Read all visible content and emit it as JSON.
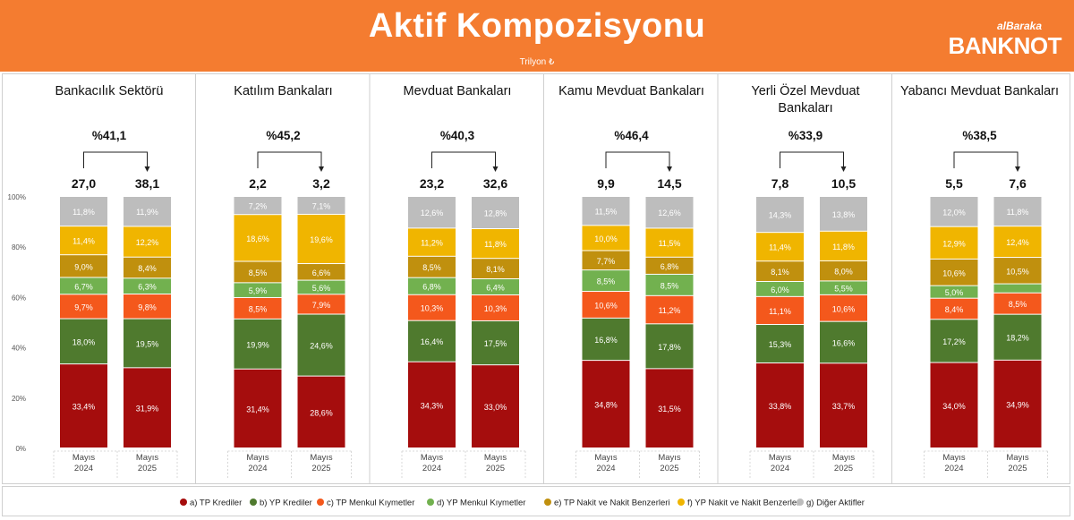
{
  "header": {
    "title": "Aktif Kompozisyonu",
    "unit": "Trilyon ₺",
    "logo_small": "alBaraka",
    "logo_main": "BANKNOT",
    "background": "#f47c30"
  },
  "chart_data": {
    "type": "bar",
    "stacked": true,
    "percent_stacked": true,
    "ylim": [
      0,
      100
    ],
    "y_ticks": [
      "0%",
      "20%",
      "40%",
      "60%",
      "80%",
      "100%"
    ],
    "grid": false,
    "legend_position": "bottom",
    "categories": [
      [
        "Mayıs",
        "2024"
      ],
      [
        "Mayıs",
        "2025"
      ]
    ],
    "series": [
      {
        "name": "a) TP Krediler",
        "color": "#a50d0d",
        "label_color": "#ffffff"
      },
      {
        "name": "b) YP Krediler",
        "color": "#4f7a2e",
        "label_color": "#ffffff"
      },
      {
        "name": "c) TP Menkul Kıymetler",
        "color": "#f4581c",
        "label_color": "#ffffff"
      },
      {
        "name": "d) YP Menkul Kıymetler",
        "color": "#72b14f",
        "label_color": "#ffffff"
      },
      {
        "name": "e) TP Nakit ve Nakit Benzerleri",
        "color": "#c0900e",
        "label_color": "#ffffff"
      },
      {
        "name": "f) YP Nakit ve Nakit Benzerleri",
        "color": "#f0b500",
        "label_color": "#ffffff"
      },
      {
        "name": "g) Diğer Aktifler",
        "color": "#bdbdbd",
        "label_color": "#ffffff"
      }
    ],
    "panels": [
      {
        "title": [
          "Bankacılık Sektörü"
        ],
        "growth": "%41,1",
        "totals": [
          "27,0",
          "38,1"
        ],
        "bars": [
          {
            "values": [
              33.4,
              18.0,
              9.7,
              6.7,
              9.0,
              11.4,
              11.8
            ],
            "labels": [
              "33,4%",
              "18,0%",
              "9,7%",
              "6,7%",
              "9,0%",
              "11,4%",
              "11,8%"
            ]
          },
          {
            "values": [
              31.9,
              19.5,
              9.8,
              6.3,
              8.4,
              12.2,
              11.9
            ],
            "labels": [
              "31,9%",
              "19,5%",
              "9,8%",
              "6,3%",
              "8,4%",
              "12,2%",
              "11,9%"
            ]
          }
        ]
      },
      {
        "title": [
          "Katılım Bankaları"
        ],
        "growth": "%45,2",
        "totals": [
          "2,2",
          "3,2"
        ],
        "bars": [
          {
            "values": [
              31.4,
              19.9,
              8.5,
              5.9,
              8.5,
              18.6,
              7.2
            ],
            "labels": [
              "31,4%",
              "19,9%",
              "8,5%",
              "5,9%",
              "8,5%",
              "18,6%",
              "7,2%"
            ]
          },
          {
            "values": [
              28.6,
              24.6,
              7.9,
              5.6,
              6.6,
              19.6,
              7.1
            ],
            "labels": [
              "28,6%",
              "24,6%",
              "7,9%",
              "5,6%",
              "6,6%",
              "19,6%",
              "7,1%"
            ]
          }
        ]
      },
      {
        "title": [
          "Mevduat Bankaları"
        ],
        "growth": "%40,3",
        "totals": [
          "23,2",
          "32,6"
        ],
        "bars": [
          {
            "values": [
              34.3,
              16.4,
              10.3,
              6.8,
              8.5,
              11.2,
              12.6
            ],
            "labels": [
              "34,3%",
              "16,4%",
              "10,3%",
              "6,8%",
              "8,5%",
              "11,2%",
              "12,6%"
            ]
          },
          {
            "values": [
              33.0,
              17.5,
              10.3,
              6.4,
              8.1,
              11.8,
              12.8
            ],
            "labels": [
              "33,0%",
              "17,5%",
              "10,3%",
              "6,4%",
              "8,1%",
              "11,8%",
              "12,8%"
            ]
          }
        ]
      },
      {
        "title": [
          "Kamu Mevduat Bankaları"
        ],
        "growth": "%46,4",
        "totals": [
          "9,9",
          "14,5"
        ],
        "bars": [
          {
            "values": [
              34.8,
              16.8,
              10.6,
              8.5,
              7.7,
              10.0,
              11.5
            ],
            "labels": [
              "34,8%",
              "16,8%",
              "10,6%",
              "8,5%",
              "7,7%",
              "10,0%",
              "11,5%"
            ]
          },
          {
            "values": [
              31.5,
              17.8,
              11.2,
              8.5,
              6.8,
              11.5,
              12.6
            ],
            "labels": [
              "31,5%",
              "17,8%",
              "11,2%",
              "8,5%",
              "6,8%",
              "11,5%",
              "12,6%"
            ]
          }
        ]
      },
      {
        "title": [
          "Yerli Özel Mevduat",
          "Bankaları"
        ],
        "growth": "%33,9",
        "totals": [
          "7,8",
          "10,5"
        ],
        "bars": [
          {
            "values": [
              33.8,
              15.3,
              11.1,
              6.0,
              8.1,
              11.4,
              14.3
            ],
            "labels": [
              "33,8%",
              "15,3%",
              "11,1%",
              "6,0%",
              "8,1%",
              "11,4%",
              "14,3%"
            ]
          },
          {
            "values": [
              33.7,
              16.6,
              10.6,
              5.5,
              8.0,
              11.8,
              13.8
            ],
            "labels": [
              "33,7%",
              "16,6%",
              "10,6%",
              "5,5%",
              "8,0%",
              "11,8%",
              "13,8%"
            ]
          }
        ]
      },
      {
        "title": [
          "Yabancı Mevduat Bankaları"
        ],
        "growth": "%38,5",
        "totals": [
          "5,5",
          "7,6"
        ],
        "bars": [
          {
            "values": [
              34.0,
              17.2,
              8.4,
              5.0,
              10.6,
              12.9,
              12.0
            ],
            "labels": [
              "34,0%",
              "17,2%",
              "8,4%",
              "5,0%",
              "10,6%",
              "12,9%",
              "12,0%"
            ]
          },
          {
            "values": [
              34.9,
              18.2,
              8.5,
              3.6,
              10.5,
              12.4,
              11.8
            ],
            "labels": [
              "34,9%",
              "18,2%",
              "8,5%",
              "",
              "10,5%",
              "12,4%",
              "11,8%"
            ]
          }
        ]
      }
    ]
  }
}
